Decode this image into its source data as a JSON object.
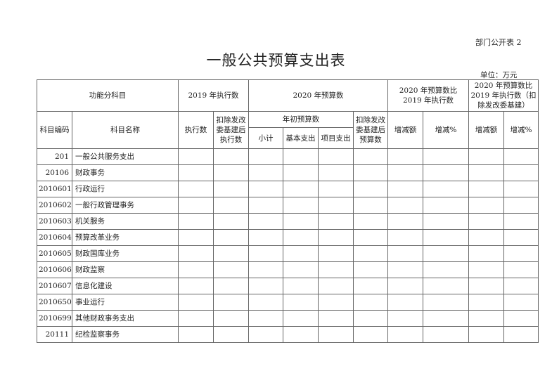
{
  "doc_number": "部门公开表 2",
  "title": "一般公共预算支出表",
  "unit": "单位：万元",
  "header": {
    "functional_subject": "功能分科目",
    "exec_2019": "2019 年执行数",
    "budget_2020": "2020 年预算数",
    "compare_2019": "2020 年预算数比 2019 年执行数",
    "compare_2019_excl": "2020 年预算数比 2019 年执行数（扣除发改委基建）",
    "subject_code": "科目编码",
    "subject_name": "科目名称",
    "exec_amount": "执行数",
    "exec_excl": "扣除发改委基建后执行数",
    "initial_budget": "年初预算数",
    "budget_excl": "扣除发改委基建后预算数",
    "subtotal": "小计",
    "basic_expense": "基本支出",
    "project_expense": "项目支出",
    "change_amount_1": "增减额",
    "change_pct_1": "增减%",
    "change_amount_2": "增减额",
    "change_pct_2": "增减%"
  },
  "rows": [
    {
      "code": "201",
      "name": "一般公共服务支出"
    },
    {
      "code": "20106",
      "name": "财政事务"
    },
    {
      "code": "2010601",
      "name": "行政运行"
    },
    {
      "code": "2010602",
      "name": "一般行政管理事务"
    },
    {
      "code": "2010603",
      "name": "机关服务"
    },
    {
      "code": "2010604",
      "name": "预算改革业务"
    },
    {
      "code": "2010605",
      "name": "财政国库业务"
    },
    {
      "code": "2010606",
      "name": "财政监察"
    },
    {
      "code": "2010607",
      "name": "信息化建设"
    },
    {
      "code": "2010650",
      "name": "事业运行"
    },
    {
      "code": "2010699",
      "name": "其他财政事务支出"
    },
    {
      "code": "20111",
      "name": "纪检监察事务"
    }
  ]
}
